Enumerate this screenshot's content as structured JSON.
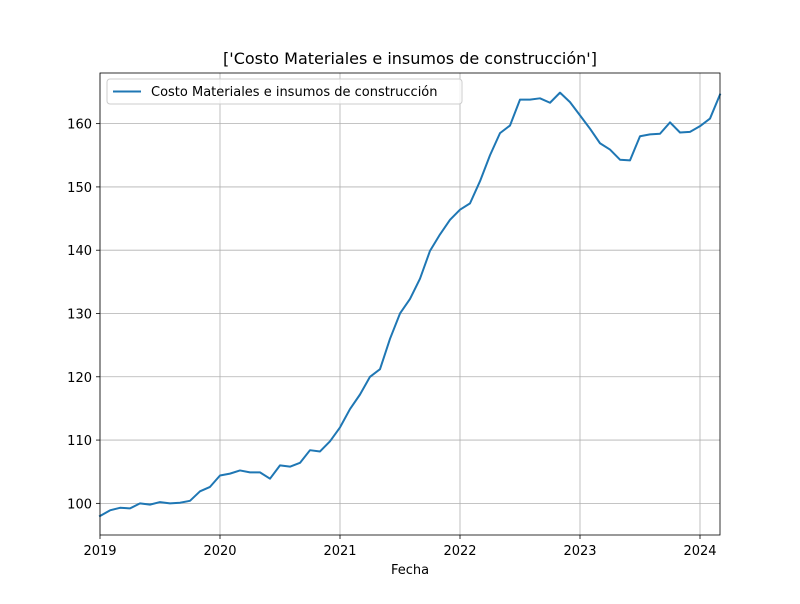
{
  "chart_data": {
    "type": "line",
    "title": "['Costo Materiales e insumos de construcción']",
    "xlabel": "Fecha",
    "ylabel": "",
    "xlim": [
      "2019-01",
      "2024-03"
    ],
    "ylim": [
      95,
      168
    ],
    "x_ticks": [
      "2019",
      "2020",
      "2021",
      "2022",
      "2023",
      "2024"
    ],
    "y_ticks": [
      100,
      110,
      120,
      130,
      140,
      150,
      160
    ],
    "grid": true,
    "legend_position": "upper-left",
    "series": [
      {
        "name": "Costo Materiales e insumos de construcción",
        "color": "#1f77b4",
        "x": [
          "2019-01",
          "2019-02",
          "2019-03",
          "2019-04",
          "2019-05",
          "2019-06",
          "2019-07",
          "2019-08",
          "2019-09",
          "2019-10",
          "2019-11",
          "2019-12",
          "2020-01",
          "2020-02",
          "2020-03",
          "2020-04",
          "2020-05",
          "2020-06",
          "2020-07",
          "2020-08",
          "2020-09",
          "2020-10",
          "2020-11",
          "2020-12",
          "2021-01",
          "2021-02",
          "2021-03",
          "2021-04",
          "2021-05",
          "2021-06",
          "2021-07",
          "2021-08",
          "2021-09",
          "2021-10",
          "2021-11",
          "2021-12",
          "2022-01",
          "2022-02",
          "2022-03",
          "2022-04",
          "2022-05",
          "2022-06",
          "2022-07",
          "2022-08",
          "2022-09",
          "2022-10",
          "2022-11",
          "2022-12",
          "2023-01",
          "2023-02",
          "2023-03",
          "2023-04",
          "2023-05",
          "2023-06",
          "2023-07",
          "2023-08",
          "2023-09",
          "2023-10",
          "2023-11",
          "2023-12",
          "2024-01",
          "2024-02",
          "2024-03"
        ],
        "values": [
          98.0,
          98.9,
          99.3,
          99.2,
          100.0,
          99.8,
          100.2,
          100.0,
          100.1,
          100.4,
          101.9,
          102.6,
          104.4,
          104.7,
          105.2,
          104.9,
          104.9,
          103.9,
          106.0,
          105.8,
          106.4,
          108.4,
          108.2,
          109.8,
          112.0,
          114.9,
          117.2,
          120.0,
          121.2,
          126.0,
          130.0,
          132.3,
          135.5,
          139.9,
          142.5,
          144.8,
          146.4,
          147.4,
          150.9,
          155.0,
          158.5,
          159.7,
          163.8,
          163.8,
          164.0,
          163.3,
          164.9,
          163.4,
          161.3,
          159.2,
          156.9,
          155.9,
          154.3,
          154.2,
          158.0,
          158.3,
          158.4,
          160.2,
          158.6,
          158.7,
          159.6,
          160.8,
          164.6
        ]
      }
    ]
  }
}
